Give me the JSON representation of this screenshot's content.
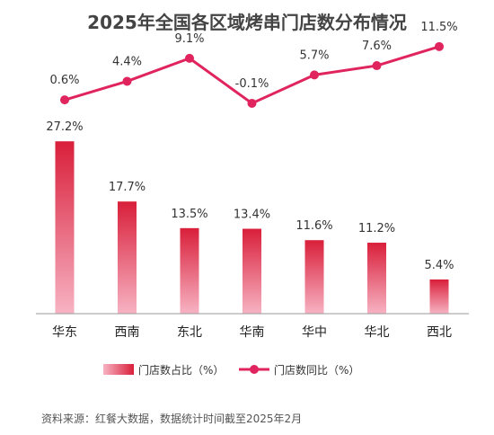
{
  "chart_data": {
    "type": "bar+line",
    "title": "2025年全国各区域烤串门店数分布情况",
    "categories": [
      "华东",
      "西南",
      "东北",
      "华南",
      "华中",
      "华北",
      "西北"
    ],
    "series": [
      {
        "name": "门店数占比（%）",
        "type": "bar",
        "values": [
          27.2,
          17.7,
          13.5,
          13.4,
          11.6,
          11.2,
          5.4
        ],
        "labels": [
          "27.2%",
          "17.7%",
          "13.5%",
          "13.4%",
          "11.6%",
          "11.2%",
          "5.4%"
        ]
      },
      {
        "name": "门店数同比（%）",
        "type": "line",
        "values": [
          0.6,
          4.4,
          9.1,
          -0.1,
          5.7,
          7.6,
          11.5
        ],
        "labels": [
          "0.6%",
          "4.4%",
          "9.1%",
          "-0.1%",
          "5.7%",
          "7.6%",
          "11.5%"
        ]
      }
    ],
    "legend_position": "bottom",
    "grid": false,
    "colors": {
      "bar_top": "#d91f3a",
      "bar_bottom": "#f7b3c3",
      "line": "#e0245e",
      "axis": "#999999"
    },
    "source": "资料来源：红餐大数据，数据统计时间截至2025年2月"
  }
}
